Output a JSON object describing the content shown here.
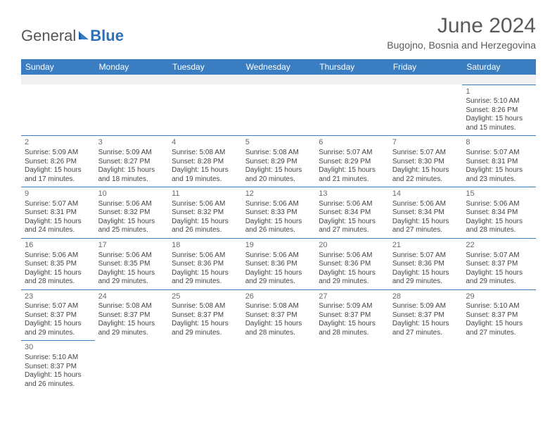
{
  "brand": {
    "part1": "General",
    "part2": "Blue"
  },
  "title": "June 2024",
  "location": "Bugojno, Bosnia and Herzegovina",
  "colors": {
    "header_bg": "#3a7ec1",
    "header_text": "#ffffff",
    "rule": "#b8b8b8",
    "week_rule": "#3a7ec1",
    "text": "#444444",
    "title_text": "#5a5a5a",
    "brand_blue": "#2f6fb3",
    "background": "#ffffff",
    "spacer_bg": "#f0f0f0"
  },
  "fonts": {
    "title_pt": 30,
    "location_pt": 14,
    "dayheader_pt": 12,
    "daynum_pt": 11,
    "body_pt": 10,
    "logo_pt": 22
  },
  "day_headers": [
    "Sunday",
    "Monday",
    "Tuesday",
    "Wednesday",
    "Thursday",
    "Friday",
    "Saturday"
  ],
  "weeks": [
    [
      null,
      null,
      null,
      null,
      null,
      null,
      {
        "n": "1",
        "sr": "Sunrise: 5:10 AM",
        "ss": "Sunset: 8:26 PM",
        "dl": "Daylight: 15 hours and 15 minutes."
      }
    ],
    [
      {
        "n": "2",
        "sr": "Sunrise: 5:09 AM",
        "ss": "Sunset: 8:26 PM",
        "dl": "Daylight: 15 hours and 17 minutes."
      },
      {
        "n": "3",
        "sr": "Sunrise: 5:09 AM",
        "ss": "Sunset: 8:27 PM",
        "dl": "Daylight: 15 hours and 18 minutes."
      },
      {
        "n": "4",
        "sr": "Sunrise: 5:08 AM",
        "ss": "Sunset: 8:28 PM",
        "dl": "Daylight: 15 hours and 19 minutes."
      },
      {
        "n": "5",
        "sr": "Sunrise: 5:08 AM",
        "ss": "Sunset: 8:29 PM",
        "dl": "Daylight: 15 hours and 20 minutes."
      },
      {
        "n": "6",
        "sr": "Sunrise: 5:07 AM",
        "ss": "Sunset: 8:29 PM",
        "dl": "Daylight: 15 hours and 21 minutes."
      },
      {
        "n": "7",
        "sr": "Sunrise: 5:07 AM",
        "ss": "Sunset: 8:30 PM",
        "dl": "Daylight: 15 hours and 22 minutes."
      },
      {
        "n": "8",
        "sr": "Sunrise: 5:07 AM",
        "ss": "Sunset: 8:31 PM",
        "dl": "Daylight: 15 hours and 23 minutes."
      }
    ],
    [
      {
        "n": "9",
        "sr": "Sunrise: 5:07 AM",
        "ss": "Sunset: 8:31 PM",
        "dl": "Daylight: 15 hours and 24 minutes."
      },
      {
        "n": "10",
        "sr": "Sunrise: 5:06 AM",
        "ss": "Sunset: 8:32 PM",
        "dl": "Daylight: 15 hours and 25 minutes."
      },
      {
        "n": "11",
        "sr": "Sunrise: 5:06 AM",
        "ss": "Sunset: 8:32 PM",
        "dl": "Daylight: 15 hours and 26 minutes."
      },
      {
        "n": "12",
        "sr": "Sunrise: 5:06 AM",
        "ss": "Sunset: 8:33 PM",
        "dl": "Daylight: 15 hours and 26 minutes."
      },
      {
        "n": "13",
        "sr": "Sunrise: 5:06 AM",
        "ss": "Sunset: 8:34 PM",
        "dl": "Daylight: 15 hours and 27 minutes."
      },
      {
        "n": "14",
        "sr": "Sunrise: 5:06 AM",
        "ss": "Sunset: 8:34 PM",
        "dl": "Daylight: 15 hours and 27 minutes."
      },
      {
        "n": "15",
        "sr": "Sunrise: 5:06 AM",
        "ss": "Sunset: 8:34 PM",
        "dl": "Daylight: 15 hours and 28 minutes."
      }
    ],
    [
      {
        "n": "16",
        "sr": "Sunrise: 5:06 AM",
        "ss": "Sunset: 8:35 PM",
        "dl": "Daylight: 15 hours and 28 minutes."
      },
      {
        "n": "17",
        "sr": "Sunrise: 5:06 AM",
        "ss": "Sunset: 8:35 PM",
        "dl": "Daylight: 15 hours and 29 minutes."
      },
      {
        "n": "18",
        "sr": "Sunrise: 5:06 AM",
        "ss": "Sunset: 8:36 PM",
        "dl": "Daylight: 15 hours and 29 minutes."
      },
      {
        "n": "19",
        "sr": "Sunrise: 5:06 AM",
        "ss": "Sunset: 8:36 PM",
        "dl": "Daylight: 15 hours and 29 minutes."
      },
      {
        "n": "20",
        "sr": "Sunrise: 5:06 AM",
        "ss": "Sunset: 8:36 PM",
        "dl": "Daylight: 15 hours and 29 minutes."
      },
      {
        "n": "21",
        "sr": "Sunrise: 5:07 AM",
        "ss": "Sunset: 8:36 PM",
        "dl": "Daylight: 15 hours and 29 minutes."
      },
      {
        "n": "22",
        "sr": "Sunrise: 5:07 AM",
        "ss": "Sunset: 8:37 PM",
        "dl": "Daylight: 15 hours and 29 minutes."
      }
    ],
    [
      {
        "n": "23",
        "sr": "Sunrise: 5:07 AM",
        "ss": "Sunset: 8:37 PM",
        "dl": "Daylight: 15 hours and 29 minutes."
      },
      {
        "n": "24",
        "sr": "Sunrise: 5:08 AM",
        "ss": "Sunset: 8:37 PM",
        "dl": "Daylight: 15 hours and 29 minutes."
      },
      {
        "n": "25",
        "sr": "Sunrise: 5:08 AM",
        "ss": "Sunset: 8:37 PM",
        "dl": "Daylight: 15 hours and 29 minutes."
      },
      {
        "n": "26",
        "sr": "Sunrise: 5:08 AM",
        "ss": "Sunset: 8:37 PM",
        "dl": "Daylight: 15 hours and 28 minutes."
      },
      {
        "n": "27",
        "sr": "Sunrise: 5:09 AM",
        "ss": "Sunset: 8:37 PM",
        "dl": "Daylight: 15 hours and 28 minutes."
      },
      {
        "n": "28",
        "sr": "Sunrise: 5:09 AM",
        "ss": "Sunset: 8:37 PM",
        "dl": "Daylight: 15 hours and 27 minutes."
      },
      {
        "n": "29",
        "sr": "Sunrise: 5:10 AM",
        "ss": "Sunset: 8:37 PM",
        "dl": "Daylight: 15 hours and 27 minutes."
      }
    ],
    [
      {
        "n": "30",
        "sr": "Sunrise: 5:10 AM",
        "ss": "Sunset: 8:37 PM",
        "dl": "Daylight: 15 hours and 26 minutes."
      },
      null,
      null,
      null,
      null,
      null,
      null
    ]
  ]
}
